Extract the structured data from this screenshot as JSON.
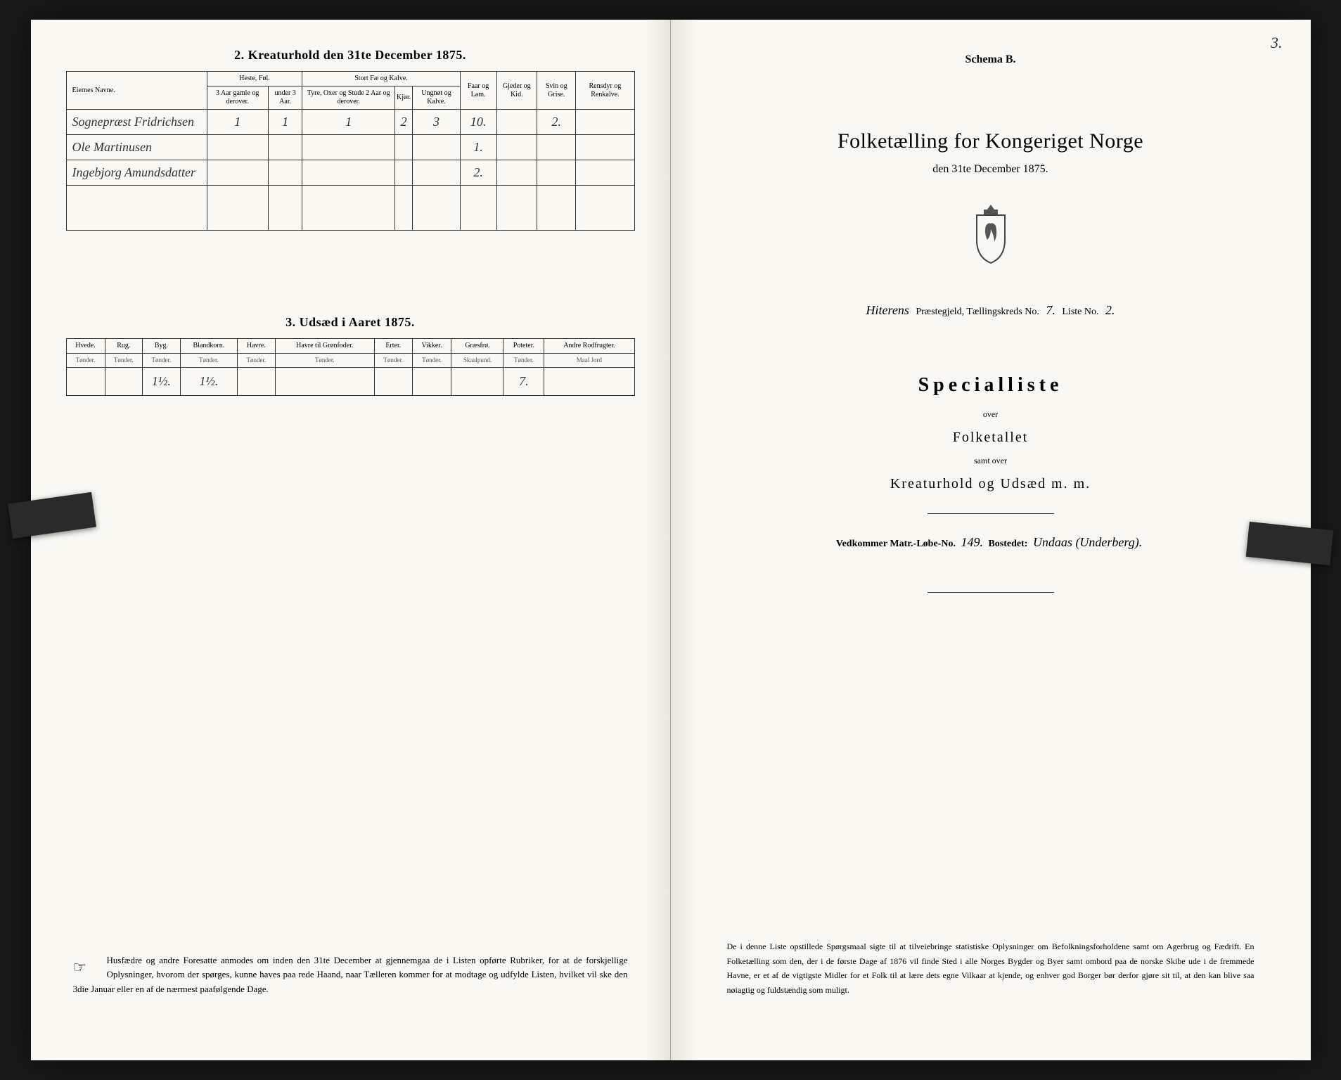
{
  "left": {
    "section2_title": "2.   Kreaturhold den 31te December 1875.",
    "table2": {
      "col_owner": "Eiernes Navne.",
      "group_horses": "Heste, Føl.",
      "group_cattle": "Stort Fæ og Kalve.",
      "col_h1": "3 Aar gamle og derover.",
      "col_h2": "under 3 Aar.",
      "col_c1": "Tyre, Oxer og Stude 2 Aar og derover.",
      "col_c2": "Kjør.",
      "col_c3": "Ungnøt og Kalve.",
      "col_sheep": "Faar og Lam.",
      "col_goat": "Gjeder og Kid.",
      "col_pig": "Svin og Grise.",
      "col_reindeer": "Rensdyr og Renkalve.",
      "rows": [
        {
          "owner": "Sognepræst Fridrichsen",
          "h1": "1",
          "h2": "1",
          "c1": "1",
          "c2": "2",
          "c3": "3",
          "sheep": "10.",
          "goat": "",
          "pig": "2.",
          "reindeer": ""
        },
        {
          "owner": "Ole Martinusen",
          "h1": "",
          "h2": "",
          "c1": "",
          "c2": "",
          "c3": "",
          "sheep": "1.",
          "goat": "",
          "pig": "",
          "reindeer": ""
        },
        {
          "owner": "Ingebjorg Amundsdatter",
          "h1": "",
          "h2": "",
          "c1": "",
          "c2": "",
          "c3": "",
          "sheep": "2.",
          "goat": "",
          "pig": "",
          "reindeer": ""
        }
      ]
    },
    "section3_title": "3.   Udsæd i Aaret 1875.",
    "table3": {
      "cols": [
        "Hvede.",
        "Rug.",
        "Byg.",
        "Blandkorn.",
        "Havre.",
        "Havre til Grønfoder.",
        "Erter.",
        "Vikker.",
        "Græsfrø.",
        "Poteter.",
        "Andre Rodfrugter."
      ],
      "subs": [
        "Tønder.",
        "Tønder.",
        "Tønder.",
        "Tønder.",
        "Tønder.",
        "Tønder.",
        "Tønder.",
        "Tønder.",
        "Skaalpund.",
        "Tønder.",
        "Maal Jord"
      ],
      "row": [
        "",
        "",
        "1½.",
        "1½.",
        "",
        "",
        "",
        "",
        "",
        "7.",
        ""
      ]
    },
    "footer": "Husfædre og andre Foresatte anmodes om inden den 31te December at gjennemgaa de i Listen opførte Rubriker, for at de forskjellige Oplysninger, hvorom der spørges, kunne haves paa rede Haand, naar Tælleren kommer for at modtage og udfylde Listen, hvilket vil ske den 3die Januar eller en af de nærmest paafølgende Dage."
  },
  "right": {
    "page_num": "3.",
    "schema": "Schema B.",
    "main_title": "Folketælling for Kongeriget Norge",
    "sub_date": "den 31te December 1875.",
    "parish_prefix": "Hiterens",
    "parish_label": " Præstegjeld, Tællingskreds No.  ",
    "kreds_no": "7.",
    "liste_label": "       Liste No.  ",
    "liste_no": "2.",
    "special": "Specialliste",
    "over": "over",
    "folketallet": "Folketallet",
    "samt": "samt over",
    "kreatur": "Kreaturhold og Udsæd m. m.",
    "vedkommer_label": "Vedkommer Matr.-Løbe-No.  ",
    "matr_no": "149.",
    "bostedet_label": "     Bostedet:  ",
    "bostedet": "Undaas (Underberg).",
    "footer": "De i denne Liste opstillede Spørgsmaal sigte til at tilveiebringe statistiske Oplysninger om Befolkningsforholdene samt om Agerbrug og Fædrift. En Folketælling som den, der i de første Dage af 1876 vil finde Sted i alle Norges Bygder og Byer samt ombord paa de norske Skibe ude i de fremmede Havne, er et af de vigtigste Midler for et Folk til at lære dets egne Vilkaar at kjende, og enhver god Borger bør derfor gjøre sit til, at den kan blive saa nøiagtig og fuldstændig som muligt."
  }
}
